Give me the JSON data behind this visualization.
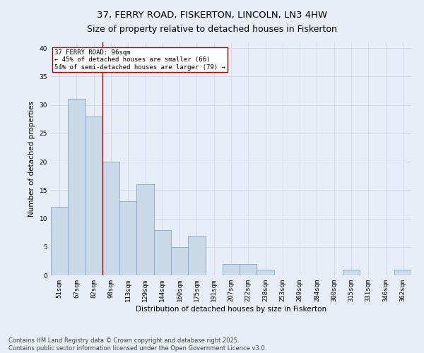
{
  "title1": "37, FERRY ROAD, FISKERTON, LINCOLN, LN3 4HW",
  "title2": "Size of property relative to detached houses in Fiskerton",
  "xlabel": "Distribution of detached houses by size in Fiskerton",
  "ylabel": "Number of detached properties",
  "categories": [
    "51sqm",
    "67sqm",
    "82sqm",
    "98sqm",
    "113sqm",
    "129sqm",
    "144sqm",
    "160sqm",
    "175sqm",
    "191sqm",
    "207sqm",
    "222sqm",
    "238sqm",
    "253sqm",
    "269sqm",
    "284sqm",
    "300sqm",
    "315sqm",
    "331sqm",
    "346sqm",
    "362sqm"
  ],
  "values": [
    12,
    31,
    28,
    20,
    13,
    16,
    8,
    5,
    7,
    0,
    2,
    2,
    1,
    0,
    0,
    0,
    0,
    1,
    0,
    0,
    1
  ],
  "bar_color": "#c9d9e8",
  "bar_edge_color": "#7aaac8",
  "grid_color": "#d0d8e8",
  "bg_color": "#e8eef8",
  "vline_color": "#aa0000",
  "annotation_text": "37 FERRY ROAD: 96sqm\n← 45% of detached houses are smaller (66)\n54% of semi-detached houses are larger (79) →",
  "annotation_box_color": "#ffffff",
  "annotation_box_edge": "#aa0000",
  "ylim": [
    0,
    41
  ],
  "yticks": [
    0,
    5,
    10,
    15,
    20,
    25,
    30,
    35,
    40
  ],
  "footer": "Contains HM Land Registry data © Crown copyright and database right 2025.\nContains public sector information licensed under the Open Government Licence v3.0.",
  "title_fontsize": 9.5,
  "axis_label_fontsize": 7.5,
  "tick_fontsize": 6.5,
  "annotation_fontsize": 6.5,
  "footer_fontsize": 6.0
}
